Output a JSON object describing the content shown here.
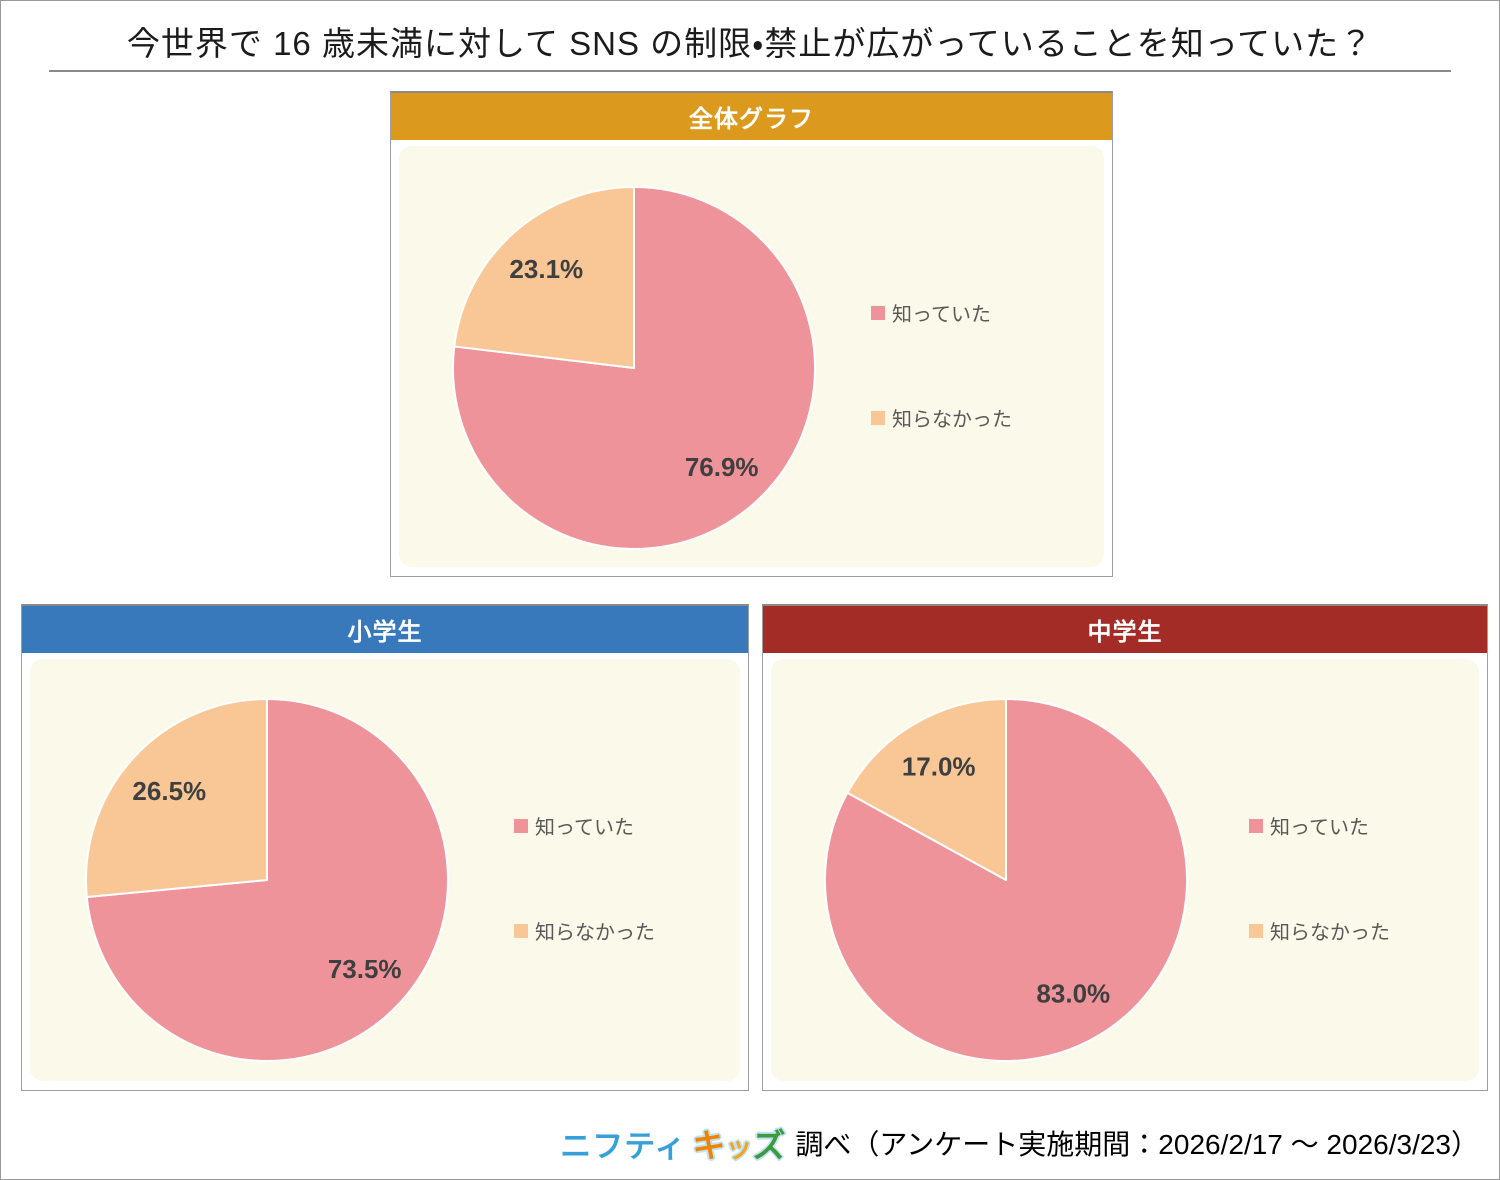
{
  "title": "今世界で 16 歳未満に対して SNS の制限・禁止が広がっていることを知っていた？",
  "legend_labels": [
    "知っていた",
    "知らなかった"
  ],
  "colors": {
    "knew": "#EF939B",
    "didnt_know": "#F8C795",
    "panel_background": "#FBF9E9",
    "nifty_blue": "#36A0DB",
    "percent_label": "#3F3F3F",
    "legend_text": "#595959"
  },
  "chart_data": [
    {
      "type": "pie",
      "title": "全体グラフ",
      "header_color": "#DB9A1D",
      "labels": [
        "知っていた",
        "知らなかった"
      ],
      "values": [
        76.9,
        23.1
      ],
      "value_labels": [
        "76.9%",
        "23.1%"
      ],
      "colors": [
        "#EF939B",
        "#F8C795"
      ],
      "start_angle_deg": 0,
      "direction": "clockwise",
      "label_radius_frac": 0.73,
      "legend_position": "right"
    },
    {
      "type": "pie",
      "title": "小学生",
      "header_color": "#3879BC",
      "labels": [
        "知っていた",
        "知らなかった"
      ],
      "values": [
        73.5,
        26.5
      ],
      "value_labels": [
        "73.5%",
        "26.5%"
      ],
      "colors": [
        "#EF939B",
        "#F8C795"
      ],
      "start_angle_deg": 0,
      "direction": "clockwise",
      "label_radius_frac": 0.73,
      "legend_position": "right"
    },
    {
      "type": "pie",
      "title": "中学生",
      "header_color": "#A32C27",
      "labels": [
        "知っていた",
        "知らなかった"
      ],
      "values": [
        83.0,
        17.0
      ],
      "value_labels": [
        "83.0%",
        "17.0%"
      ],
      "colors": [
        "#EF939B",
        "#F8C795"
      ],
      "start_angle_deg": 0,
      "direction": "clockwise",
      "label_radius_frac": 0.73,
      "legend_position": "right"
    }
  ],
  "footer": {
    "logo": {
      "nifty": "ニフティ",
      "kids": [
        {
          "char": "キ",
          "color": "#F08300"
        },
        {
          "char": "ッ",
          "color": "#F5A41E"
        },
        {
          "char": "ズ",
          "color": "#3F9A3C"
        }
      ]
    },
    "text": "調べ（アンケート実施期間：2026/2/17 ～ 2026/3/23）"
  }
}
